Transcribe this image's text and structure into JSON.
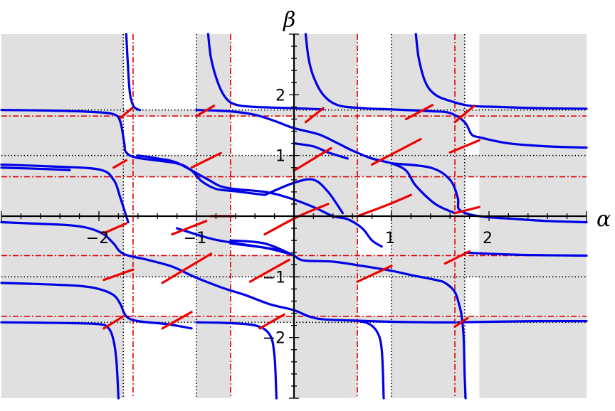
{
  "chart_data": {
    "type": "line",
    "title": "",
    "xlabel": "α",
    "ylabel": "β",
    "xlim": [
      -3.0,
      3.0
    ],
    "ylim": [
      -3.0,
      3.0
    ],
    "x_ticks": [
      {
        "value": -2,
        "label": "−2"
      },
      {
        "value": -1,
        "label": "−1"
      },
      {
        "value": 1,
        "label": "1"
      },
      {
        "value": 2,
        "label": "2"
      }
    ],
    "y_ticks": [
      {
        "value": 2,
        "label": "2"
      },
      {
        "value": 1,
        "label": "1"
      },
      {
        "value": -1,
        "label": "−1"
      },
      {
        "value": -2,
        "label": "−2"
      }
    ],
    "grid": false,
    "colors": {
      "blue_curve": "#0000e6",
      "red_segment": "#ee0000",
      "shaded_region": "#e0e0e0",
      "dotted_line": "#000000",
      "dashdot_line": "#dd0000"
    },
    "shaded_x_intervals": [
      [
        -3.0,
        -1.75
      ],
      [
        -1.0,
        -0.65
      ],
      [
        0.0,
        0.65
      ],
      [
        1.0,
        1.75
      ],
      [
        1.9,
        3.0
      ]
    ],
    "shaded_y_intervals": [
      [
        1.65,
        1.75
      ],
      [
        0.65,
        1.0
      ],
      [
        -0.65,
        -1.0
      ],
      [
        -1.65,
        -1.75
      ]
    ],
    "dotted_x": [
      -1.75,
      -1.0,
      1.0,
      1.75
    ],
    "dotted_y": [
      1.75,
      1.0,
      -1.0,
      -1.75
    ],
    "dashdot_x": [
      -1.65,
      -0.65,
      0.65,
      1.65
    ],
    "dashdot_y": [
      1.65,
      0.65,
      -0.65,
      -1.65
    ],
    "blue_series": [
      {
        "points": [
          [
            -1.72,
            3.0
          ],
          [
            -1.7,
            2.4
          ],
          [
            -1.68,
            2.0
          ],
          [
            -1.64,
            1.8
          ],
          [
            -1.58,
            1.75
          ]
        ]
      },
      {
        "points": [
          [
            -3.0,
            1.75
          ],
          [
            -2.5,
            1.74
          ],
          [
            -2.1,
            1.72
          ],
          [
            -1.85,
            1.68
          ],
          [
            -1.78,
            1.55
          ],
          [
            -1.74,
            1.2
          ],
          [
            -1.72,
            1.05
          ],
          [
            -1.6,
            0.96
          ],
          [
            -1.2,
            0.87
          ],
          [
            -1.05,
            0.75
          ],
          [
            -0.95,
            0.58
          ],
          [
            -0.8,
            0.45
          ],
          [
            -0.6,
            0.41
          ],
          [
            -0.3,
            0.35
          ]
        ]
      },
      {
        "points": [
          [
            -3.0,
            0.85
          ],
          [
            -2.5,
            0.82
          ],
          [
            -2.0,
            0.77
          ],
          [
            -1.85,
            0.6
          ],
          [
            -1.78,
            0.3
          ],
          [
            -1.72,
            0.0
          ],
          [
            -1.7,
            -0.1
          ]
        ]
      },
      {
        "points": [
          [
            -3.0,
            0.8
          ],
          [
            -2.6,
            0.78
          ],
          [
            -2.3,
            0.76
          ]
        ]
      },
      {
        "points": [
          [
            -0.88,
            3.0
          ],
          [
            -0.85,
            2.6
          ],
          [
            -0.78,
            2.2
          ],
          [
            -0.7,
            1.95
          ],
          [
            -0.6,
            1.84
          ],
          [
            -0.4,
            1.8
          ],
          [
            0.0,
            1.78
          ],
          [
            0.3,
            1.76
          ]
        ]
      },
      {
        "points": [
          [
            -1.0,
            1.75
          ],
          [
            -0.8,
            1.74
          ],
          [
            -0.6,
            1.72
          ],
          [
            -0.4,
            1.67
          ],
          [
            -0.2,
            1.57
          ],
          [
            0.0,
            1.45
          ],
          [
            0.25,
            1.35
          ],
          [
            0.45,
            1.2
          ],
          [
            0.6,
            1.08
          ],
          [
            0.8,
            0.95
          ],
          [
            1.0,
            0.87
          ],
          [
            1.15,
            0.75
          ],
          [
            1.25,
            0.5
          ],
          [
            1.45,
            0.2
          ],
          [
            1.65,
            0.05
          ]
        ]
      },
      {
        "points": [
          [
            -1.6,
            1.0
          ],
          [
            -1.4,
            0.95
          ],
          [
            -1.2,
            0.88
          ],
          [
            -0.9,
            0.62
          ],
          [
            -0.7,
            0.47
          ],
          [
            -0.3,
            0.4
          ],
          [
            -0.05,
            0.3
          ],
          [
            0.2,
            0.15
          ],
          [
            0.4,
            0.0
          ],
          [
            0.55,
            -0.05
          ],
          [
            0.7,
            -0.2
          ],
          [
            0.8,
            -0.4
          ],
          [
            0.9,
            -0.5
          ]
        ]
      },
      {
        "points": [
          [
            0.12,
            3.0
          ],
          [
            0.15,
            2.6
          ],
          [
            0.2,
            2.3
          ],
          [
            0.3,
            2.0
          ],
          [
            0.45,
            1.83
          ],
          [
            0.7,
            1.78
          ],
          [
            1.0,
            1.76
          ],
          [
            1.4,
            1.73
          ],
          [
            1.6,
            1.7
          ],
          [
            1.75,
            1.55
          ],
          [
            1.82,
            1.35
          ],
          [
            1.9,
            1.3
          ],
          [
            2.2,
            1.2
          ],
          [
            2.6,
            1.15
          ],
          [
            3.0,
            1.13
          ]
        ]
      },
      {
        "points": [
          [
            1.25,
            3.0
          ],
          [
            1.28,
            2.6
          ],
          [
            1.35,
            2.2
          ],
          [
            1.45,
            2.0
          ],
          [
            1.6,
            1.9
          ],
          [
            1.8,
            1.82
          ],
          [
            2.1,
            1.8
          ],
          [
            2.5,
            1.78
          ],
          [
            3.0,
            1.77
          ]
        ]
      },
      {
        "points": [
          [
            1.0,
            0.87
          ],
          [
            1.4,
            0.8
          ],
          [
            1.6,
            0.6
          ],
          [
            1.68,
            0.3
          ],
          [
            1.7,
            0.1
          ],
          [
            1.9,
            0.0
          ],
          [
            2.3,
            -0.05
          ],
          [
            2.6,
            -0.08
          ],
          [
            3.0,
            -0.1
          ]
        ]
      },
      {
        "points": [
          [
            -3.0,
            -0.1
          ],
          [
            -2.7,
            -0.12
          ],
          [
            -2.3,
            -0.15
          ],
          [
            -2.1,
            -0.2
          ],
          [
            -1.95,
            -0.3
          ],
          [
            -1.85,
            -0.45
          ],
          [
            -1.75,
            -0.62
          ],
          [
            -1.5,
            -0.72
          ],
          [
            -1.25,
            -0.83
          ],
          [
            -1.05,
            -0.98
          ],
          [
            -0.9,
            -1.08
          ],
          [
            -0.7,
            -1.2
          ],
          [
            -0.5,
            -1.3
          ],
          [
            -0.25,
            -1.45
          ],
          [
            0.0,
            -1.55
          ],
          [
            0.15,
            -1.65
          ],
          [
            0.3,
            -1.7
          ],
          [
            0.6,
            -1.72
          ],
          [
            1.0,
            -1.74
          ],
          [
            1.4,
            -1.75
          ],
          [
            1.65,
            -1.75
          ]
        ]
      },
      {
        "points": [
          [
            -0.65,
            -0.45
          ],
          [
            -0.3,
            -0.52
          ],
          [
            -0.1,
            -0.58
          ],
          [
            0.0,
            -0.65
          ],
          [
            0.1,
            -0.73
          ],
          [
            0.4,
            -0.75
          ],
          [
            0.7,
            -0.82
          ],
          [
            1.0,
            -0.9
          ],
          [
            1.2,
            -0.97
          ],
          [
            1.45,
            -1.05
          ],
          [
            1.55,
            -1.1
          ],
          [
            1.65,
            -1.25
          ],
          [
            1.7,
            -1.5
          ],
          [
            1.72,
            -1.65
          ],
          [
            1.74,
            -2.0
          ],
          [
            1.75,
            -2.6
          ],
          [
            1.76,
            -3.0
          ]
        ]
      },
      {
        "points": [
          [
            -3.0,
            -1.1
          ],
          [
            -2.6,
            -1.12
          ],
          [
            -2.2,
            -1.15
          ],
          [
            -2.0,
            -1.2
          ],
          [
            -1.85,
            -1.3
          ],
          [
            -1.78,
            -1.45
          ],
          [
            -1.72,
            -1.65
          ],
          [
            -1.6,
            -1.73
          ],
          [
            -1.3,
            -1.78
          ],
          [
            -1.05,
            -1.85
          ]
        ]
      },
      {
        "points": [
          [
            -3.0,
            -1.75
          ],
          [
            -2.4,
            -1.76
          ],
          [
            -2.0,
            -1.78
          ],
          [
            -1.9,
            -1.85
          ],
          [
            -1.85,
            -2.05
          ],
          [
            -1.82,
            -2.4
          ],
          [
            -1.8,
            -3.0
          ]
        ]
      },
      {
        "points": [
          [
            -0.65,
            -0.4
          ],
          [
            -0.3,
            -0.45
          ],
          [
            0.0,
            -0.65
          ]
        ]
      },
      {
        "points": [
          [
            -0.3,
            0.35
          ],
          [
            0.0,
            0.55
          ],
          [
            0.2,
            0.6
          ],
          [
            0.35,
            0.4
          ],
          [
            0.5,
            0.05
          ]
        ]
      },
      {
        "points": [
          [
            -1.2,
            -0.2
          ],
          [
            -0.9,
            -0.35
          ],
          [
            -0.7,
            -0.42
          ],
          [
            -0.3,
            -0.52
          ],
          [
            -0.05,
            -0.62
          ]
        ]
      },
      {
        "points": [
          [
            -1.0,
            -1.75
          ],
          [
            -0.7,
            -1.76
          ],
          [
            -0.4,
            -1.8
          ],
          [
            -0.25,
            -1.95
          ],
          [
            -0.2,
            -2.3
          ],
          [
            -0.18,
            -3.0
          ]
        ]
      },
      {
        "points": [
          [
            0.6,
            -1.72
          ],
          [
            0.75,
            -1.76
          ],
          [
            0.85,
            -1.9
          ],
          [
            0.9,
            -2.2
          ],
          [
            0.92,
            -3.0
          ]
        ]
      },
      {
        "points": [
          [
            1.76,
            -0.6
          ],
          [
            2.0,
            -0.62
          ],
          [
            2.4,
            -0.64
          ],
          [
            3.0,
            -0.65
          ]
        ]
      },
      {
        "points": [
          [
            1.68,
            -1.75
          ],
          [
            2.0,
            -1.74
          ],
          [
            2.5,
            -1.73
          ],
          [
            3.0,
            -1.73
          ]
        ]
      },
      {
        "points": [
          [
            0.0,
            1.2
          ],
          [
            0.2,
            1.15
          ],
          [
            0.35,
            1.05
          ],
          [
            0.55,
            0.95
          ]
        ]
      }
    ],
    "red_segments": [
      [
        [
          -1.78,
          1.62
        ],
        [
          -1.66,
          1.78
        ]
      ],
      [
        [
          -1.85,
          0.8
        ],
        [
          -1.72,
          0.92
        ]
      ],
      [
        [
          -1.0,
          1.65
        ],
        [
          -0.82,
          1.82
        ]
      ],
      [
        [
          -1.05,
          0.8
        ],
        [
          -0.75,
          1.04
        ]
      ],
      [
        [
          -0.85,
          0.0
        ],
        [
          -0.62,
          0.0
        ]
      ],
      [
        [
          0.12,
          1.55
        ],
        [
          0.3,
          1.78
        ]
      ],
      [
        [
          0.0,
          0.75
        ],
        [
          0.38,
          1.12
        ]
      ],
      [
        [
          -0.3,
          -0.3
        ],
        [
          0.05,
          0.0
        ],
        [
          0.35,
          0.2
        ]
      ],
      [
        [
          0.65,
          0.0
        ],
        [
          0.95,
          0.18
        ],
        [
          1.2,
          0.35
        ]
      ],
      [
        [
          0.8,
          0.85
        ],
        [
          1.3,
          1.27
        ]
      ],
      [
        [
          1.15,
          1.6
        ],
        [
          1.42,
          1.83
        ]
      ],
      [
        [
          1.65,
          1.55
        ],
        [
          1.85,
          1.82
        ]
      ],
      [
        [
          1.6,
          1.05
        ],
        [
          1.9,
          1.25
        ]
      ],
      [
        [
          1.65,
          0.05
        ],
        [
          1.9,
          0.15
        ]
      ],
      [
        [
          -1.95,
          -0.28
        ],
        [
          -1.72,
          -0.12
        ]
      ],
      [
        [
          -1.25,
          -0.3
        ],
        [
          -0.9,
          -0.08
        ]
      ],
      [
        [
          -1.95,
          -1.05
        ],
        [
          -1.65,
          -0.88
        ]
      ],
      [
        [
          -1.35,
          -1.1
        ],
        [
          -0.85,
          -0.62
        ]
      ],
      [
        [
          -0.45,
          -1.08
        ],
        [
          -0.05,
          -0.72
        ]
      ],
      [
        [
          0.65,
          -1.08
        ],
        [
          1.0,
          -0.82
        ]
      ],
      [
        [
          1.55,
          -0.78
        ],
        [
          1.8,
          -0.58
        ]
      ],
      [
        [
          -1.95,
          -1.85
        ],
        [
          -1.75,
          -1.65
        ]
      ],
      [
        [
          -1.35,
          -1.85
        ],
        [
          -1.05,
          -1.58
        ]
      ],
      [
        [
          -0.35,
          -1.85
        ],
        [
          -0.1,
          -1.62
        ]
      ],
      [
        [
          1.65,
          -1.82
        ],
        [
          1.78,
          -1.68
        ]
      ]
    ]
  }
}
